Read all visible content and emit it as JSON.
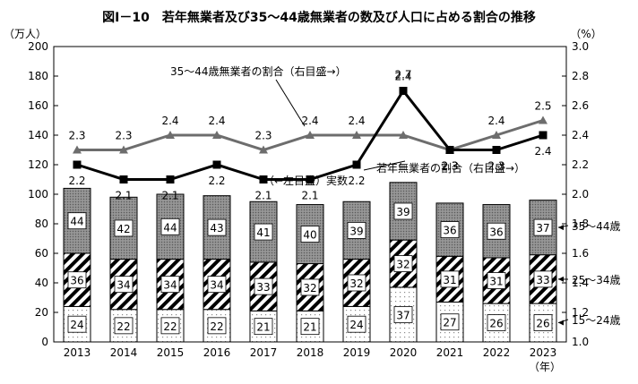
{
  "chart_data": {
    "type": "bar",
    "title": "図Ⅰ－10　若年無業者及び35～44歳無業者の数及び人口に占める割合の推移",
    "left_axis": {
      "unit": "（万人）",
      "ylim": [
        0,
        200
      ],
      "ticks": [
        "0",
        "20",
        "40",
        "60",
        "80",
        "100",
        "120",
        "140",
        "160",
        "180",
        "200"
      ]
    },
    "right_axis": {
      "unit": "（%）",
      "ylim": [
        1.0,
        3.0
      ],
      "ticks": [
        "1.0",
        "1.2",
        "1.4",
        "1.6",
        "1.8",
        "2.0",
        "2.2",
        "2.4",
        "2.6",
        "2.8",
        "3.0"
      ]
    },
    "x_unit": "（年）",
    "categories": [
      "2013",
      "2014",
      "2015",
      "2016",
      "2017",
      "2018",
      "2019",
      "2020",
      "2021",
      "2022",
      "2023"
    ],
    "series": [
      {
        "name": "15～24歳",
        "values": [
          24,
          22,
          22,
          22,
          21,
          21,
          24,
          37,
          27,
          26,
          26
        ],
        "labels": [
          "24",
          "22",
          "22",
          "22",
          "21",
          "21",
          "24",
          "37",
          "27",
          "26",
          "26"
        ]
      },
      {
        "name": "25～34歳",
        "values": [
          36,
          34,
          34,
          34,
          33,
          32,
          32,
          32,
          31,
          31,
          33
        ],
        "labels": [
          "36",
          "34",
          "34",
          "34",
          "33",
          "32",
          "32",
          "32",
          "31",
          "31",
          "33"
        ]
      },
      {
        "name": "35～44歳",
        "values": [
          44,
          42,
          44,
          43,
          41,
          40,
          39,
          39,
          36,
          36,
          37
        ],
        "labels": [
          "44",
          "42",
          "44",
          "43",
          "41",
          "40",
          "39",
          "39",
          "36",
          "36",
          "37"
        ]
      }
    ],
    "lines": [
      {
        "name": "35～44歳無業者の割合",
        "axis": "right",
        "color": "#6d6d6d",
        "values": [
          2.3,
          2.3,
          2.4,
          2.4,
          2.3,
          2.4,
          2.4,
          2.4,
          2.3,
          2.4,
          2.5
        ],
        "labels": [
          "2.3",
          "2.3",
          "2.4",
          "2.4",
          "2.3",
          "2.4",
          "2.4",
          "2.4",
          "2.3",
          "2.4",
          "2.5"
        ]
      },
      {
        "name": "若年無業者の割合",
        "axis": "right",
        "color": "#000000",
        "values": [
          2.2,
          2.1,
          2.1,
          2.2,
          2.1,
          2.1,
          2.2,
          2.7,
          2.3,
          2.3,
          2.4
        ],
        "labels": [
          "2.2",
          "2.1",
          "2.1",
          "2.2",
          "2.1",
          "2.1",
          "2.2",
          "2.7",
          "2.3",
          "2.3",
          "2.4"
        ]
      }
    ],
    "annotations": {
      "line35": "35～44歳無業者の割合（右目盛→）",
      "youth": "若年無業者の割合（右目盛→）",
      "bars": "（←左目盛）実数"
    }
  }
}
